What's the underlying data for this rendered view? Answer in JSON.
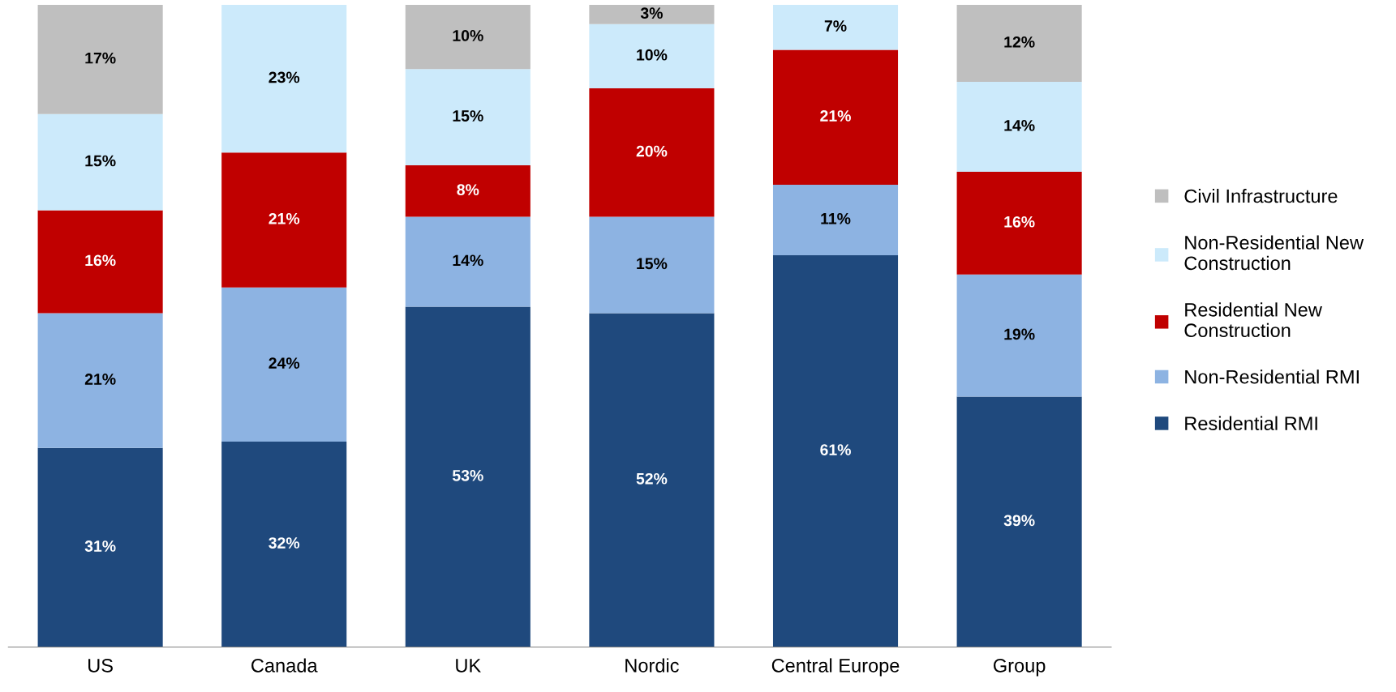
{
  "chart_data": {
    "type": "bar",
    "stacked": true,
    "categories": [
      "US",
      "Canada",
      "UK",
      "Nordic",
      "Central Europe",
      "Group"
    ],
    "series": [
      {
        "name": "Residential RMI",
        "color": "#1f497d",
        "values": [
          31,
          32,
          53,
          52,
          61,
          39
        ],
        "value_labels": [
          "31%",
          "32%",
          "53%",
          "52%",
          "61%",
          "39%"
        ]
      },
      {
        "name": "Non-Residential RMI",
        "color": "#8db3e2",
        "values": [
          21,
          24,
          14,
          15,
          11,
          19
        ],
        "value_labels": [
          "21%",
          "24%",
          "14%",
          "15%",
          "11%",
          "19%"
        ]
      },
      {
        "name": "Residential New Construction",
        "color": "#c00000",
        "values": [
          16,
          21,
          8,
          20,
          21,
          16
        ],
        "value_labels": [
          "16%",
          "21%",
          "8%",
          "20%",
          "21%",
          "16%"
        ]
      },
      {
        "name": "Non-Residential New Construction",
        "color": "#cceafb",
        "values": [
          15,
          23,
          15,
          10,
          7,
          14
        ],
        "value_labels": [
          "15%",
          "23%",
          "15%",
          "10%",
          "7%",
          "14%"
        ]
      },
      {
        "name": "Civil Infrastructure",
        "color": "#bfbfbf",
        "values": [
          17,
          0,
          10,
          3,
          0,
          12
        ],
        "value_labels": [
          "17%",
          null,
          "10%",
          "3%",
          null,
          "12%"
        ]
      }
    ],
    "ylim": [
      0,
      100
    ],
    "tick_labels": "x",
    "legend": "right",
    "grid": false
  }
}
